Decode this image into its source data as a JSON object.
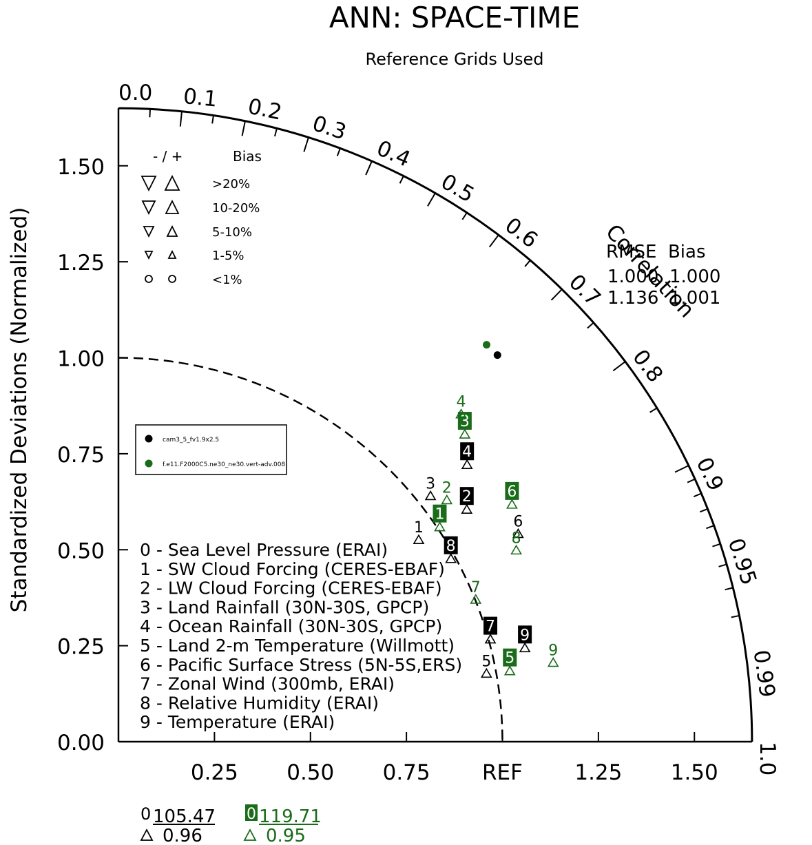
{
  "title": "ANN: SPACE-TIME",
  "subtitle": "Reference Grids Used",
  "y_axis_label": "Standardized Deviations (Normalized)",
  "correlation_label": "Correlation",
  "ref_label": "REF",
  "bias_legend": {
    "header_sign": "- / +",
    "header_bias": "Bias",
    "rows": [
      ">20%",
      "10-20%",
      "5-10%",
      "1-5%",
      "<1%"
    ]
  },
  "rmse_header": "RMSE  Bias",
  "rmse_rows": [
    {
      "rmse": "1.000",
      "bias": "1.000"
    },
    {
      "rmse": "1.136",
      "bias": "1.001"
    }
  ],
  "model_legend": [
    {
      "name": "cam3_5_fv1.9x2.5",
      "color": "#000000"
    },
    {
      "name": "f.e11.F2000C5.ne30_ne30.vert-adv.008",
      "color": "#1a6b1a"
    }
  ],
  "variables": [
    "0 - Sea Level Pressure (ERAI)",
    "1 - SW Cloud Forcing (CERES-EBAF)",
    "2 - LW Cloud Forcing (CERES-EBAF)",
    "3 - Land Rainfall (30N-30S, GPCP)",
    "4 - Ocean Rainfall (30N-30S, GPCP)",
    "5 - Land 2-m Temperature (Willmott)",
    "6 - Pacific Surface Stress (5N-5S,ERS)",
    "7 - Zonal Wind (300mb, ERAI)",
    "8 - Relative Humidity (ERAI)",
    "9 - Temperature (ERAI)"
  ],
  "off_chart": [
    {
      "label": "0",
      "value": "105.47",
      "corr": "0.96",
      "color": "#000000"
    },
    {
      "label": "0",
      "value": "119.71",
      "corr": "0.95",
      "color": "#1a6b1a"
    }
  ],
  "chart_data": {
    "type": "scatter",
    "title": "ANN: SPACE-TIME",
    "subtitle": "Reference Grids Used",
    "ylabel": "Standardized Deviations (Normalized)",
    "xlim": [
      0,
      1.65
    ],
    "ylim": [
      0,
      1.65
    ],
    "x_ticks": [
      "0.25",
      "0.50",
      "0.75",
      "REF",
      "1.25",
      "1.50"
    ],
    "x_tick_values": [
      0.25,
      0.5,
      0.75,
      1.0,
      1.25,
      1.5
    ],
    "y_ticks": [
      "0.00",
      "0.25",
      "0.50",
      "0.75",
      "1.00",
      "1.25",
      "1.50"
    ],
    "y_tick_values": [
      0,
      0.25,
      0.5,
      0.75,
      1.0,
      1.25,
      1.5
    ],
    "correlation_ticks": [
      "0.0",
      "0.1",
      "0.2",
      "0.3",
      "0.4",
      "0.5",
      "0.6",
      "0.7",
      "0.8",
      "0.9",
      "0.95",
      "0.99",
      "1.0"
    ],
    "correlation_tick_values": [
      0.0,
      0.1,
      0.2,
      0.3,
      0.4,
      0.5,
      0.6,
      0.7,
      0.8,
      0.9,
      0.95,
      0.99,
      1.0
    ],
    "max_std": 1.65,
    "series": [
      {
        "name": "cam3_5_fv1.9x2.5",
        "color": "#000000",
        "points": [
          {
            "label": "1",
            "std": 0.949,
            "corr": 0.824,
            "boxed": false
          },
          {
            "label": "2",
            "std": 1.097,
            "corr": 0.827,
            "boxed": true
          },
          {
            "label": "3",
            "std": 1.042,
            "corr": 0.78,
            "boxed": false
          },
          {
            "label": "4",
            "std": 1.167,
            "corr": 0.778,
            "boxed": true
          },
          {
            "label": "5",
            "std": 0.977,
            "corr": 0.981,
            "boxed": false
          },
          {
            "label": "6",
            "std": 1.179,
            "corr": 0.883,
            "boxed": false
          },
          {
            "label": "7",
            "std": 1.008,
            "corr": 0.961,
            "boxed": true
          },
          {
            "label": "8",
            "std": 0.994,
            "corr": 0.871,
            "boxed": true
          },
          {
            "label": "9",
            "std": 1.089,
            "corr": 0.972,
            "boxed": true
          }
        ]
      },
      {
        "name": "f.e11.F2000C5.ne30_ne30.vert-adv.008",
        "color": "#1a6b1a",
        "points": [
          {
            "label": "1",
            "std": 1.013,
            "corr": 0.826,
            "boxed": true
          },
          {
            "label": "2",
            "std": 1.069,
            "corr": 0.8,
            "boxed": false
          },
          {
            "label": "3",
            "std": 1.214,
            "corr": 0.743,
            "boxed": true
          },
          {
            "label": "4",
            "std": 1.243,
            "corr": 0.718,
            "boxed": false
          },
          {
            "label": "5",
            "std": 1.038,
            "corr": 0.982,
            "boxed": true
          },
          {
            "label": "6",
            "std": 1.203,
            "corr": 0.852,
            "boxed": true
          },
          {
            "label": "7",
            "std": 1.006,
            "corr": 0.925,
            "boxed": false
          },
          {
            "label": "8",
            "std": 1.155,
            "corr": 0.897,
            "boxed": false
          },
          {
            "label": "9",
            "std": 1.153,
            "corr": 0.982,
            "boxed": false
          }
        ]
      }
    ],
    "reference_points": [
      {
        "std": 1.41,
        "corr": 0.7,
        "color": "#000000"
      },
      {
        "std": 1.41,
        "corr": 0.68,
        "color": "#1a6b1a"
      }
    ]
  }
}
